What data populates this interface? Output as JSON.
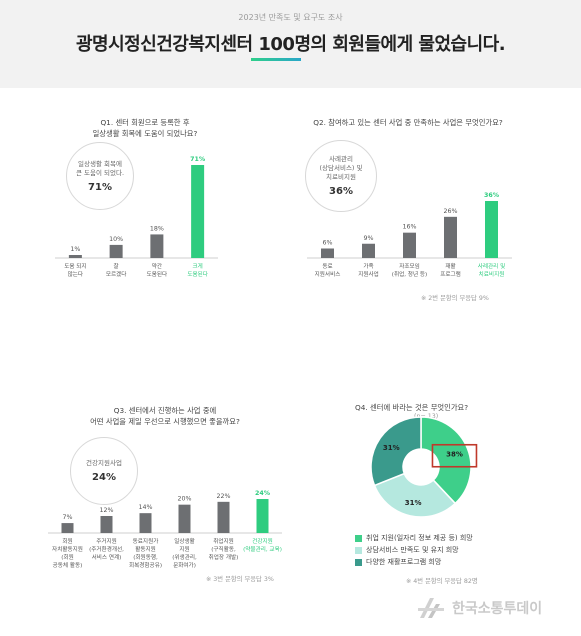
{
  "header": {
    "subtitle": "2023년 만족도 및 요구도 조사",
    "title": "광명시정신건강복지센터 100명의 회원들에게 물었습니다."
  },
  "q1": {
    "question": [
      "Q1. 센터 회원으로 등록한 후",
      "일상생활 회복에 도움이 되었나요?"
    ],
    "highlight": {
      "label": [
        "일상생활 회복에",
        "큰 도움이 되었다."
      ],
      "value": "71%"
    }
  },
  "q2": {
    "question": [
      "Q2. 참여하고 있는 센터 사업 중 만족하는 사업은 무엇인가요?"
    ],
    "highlight": {
      "label": [
        "사례관리",
        "(상담서비스) 및",
        "치료비지원"
      ],
      "value": "36%"
    },
    "note": "※ 2번 문항의 무응답 9%"
  },
  "q3": {
    "question": [
      "Q3. 센터에서 진행하는 사업 중에",
      "어떤 사업을 제일 우선으로 시행했으면 좋을까요?"
    ],
    "highlight": {
      "label": [
        "건강지원사업"
      ],
      "value": "24%"
    },
    "note": "※ 3번 문항의 무응답 3%"
  },
  "q4": {
    "question": "Q4. 센터에 바라는 것은 무엇인가요?",
    "n": "(n= 13)",
    "note": "※ 4번 문항의 무응답 82명"
  },
  "footer": {
    "brand": "한국소통투데이"
  },
  "colors": {
    "highlight": "#2ecc7f",
    "bar": "#6d6f72",
    "teal": "#3a9a8c",
    "mint": "#b5e8df",
    "green": "#3ecf8a",
    "box": "#c0392b"
  },
  "chart_data": [
    {
      "type": "bar",
      "categories": [
        [
          "도움 되지",
          "않는다"
        ],
        [
          "잘",
          "모르겠다"
        ],
        [
          "약간",
          "도움된다"
        ],
        [
          "크게",
          "도움된다"
        ]
      ],
      "values": [
        1,
        10,
        18,
        71
      ],
      "value_labels": [
        "1%",
        "10%",
        "18%",
        "71%"
      ],
      "highlight_index": 3
    },
    {
      "type": "bar",
      "categories": [
        [
          "동료",
          "지원서비스"
        ],
        [
          "가족",
          "지원사업"
        ],
        [
          "자조모임",
          "(취업, 청년 등)"
        ],
        [
          "재활",
          "프로그램"
        ],
        [
          "사례관리 및",
          "치료비지원"
        ]
      ],
      "values": [
        6,
        9,
        16,
        26,
        36
      ],
      "value_labels": [
        "6%",
        "9%",
        "16%",
        "26%",
        "36%"
      ],
      "highlight_index": 4
    },
    {
      "type": "bar",
      "categories": [
        [
          "회원",
          "자치활동지원",
          "(회원",
          "공동체 활동)"
        ],
        [
          "주거지원",
          "(주거환경개선,",
          "서비스 연계)"
        ],
        [
          "동료지원가",
          "활동지원",
          "(회원동행,",
          "회복경험공유)"
        ],
        [
          "일상생활",
          "지원",
          "(위생관리,",
          "문화여가)"
        ],
        [
          "취업지원",
          "(구직활동,",
          "취업장 개발)"
        ],
        [
          "건강지원",
          "(약물관리, 교육)"
        ]
      ],
      "values": [
        7,
        12,
        14,
        20,
        22,
        24
      ],
      "value_labels": [
        "7%",
        "12%",
        "14%",
        "20%",
        "22%",
        "24%"
      ],
      "highlight_index": 5
    },
    {
      "type": "pie",
      "donut": true,
      "slices": [
        {
          "label": "취업 지원(일자리 정보 제공 등) 희망",
          "value": 38,
          "value_label": "38%",
          "color": "#3ecf8a"
        },
        {
          "label": "상담서비스 만족도 및 유지 희망",
          "value": 31,
          "value_label": "31%",
          "color": "#b5e8df"
        },
        {
          "label": "다양한 재활프로그램 희망",
          "value": 31,
          "value_label": "31%",
          "color": "#3a9a8c"
        }
      ]
    }
  ]
}
